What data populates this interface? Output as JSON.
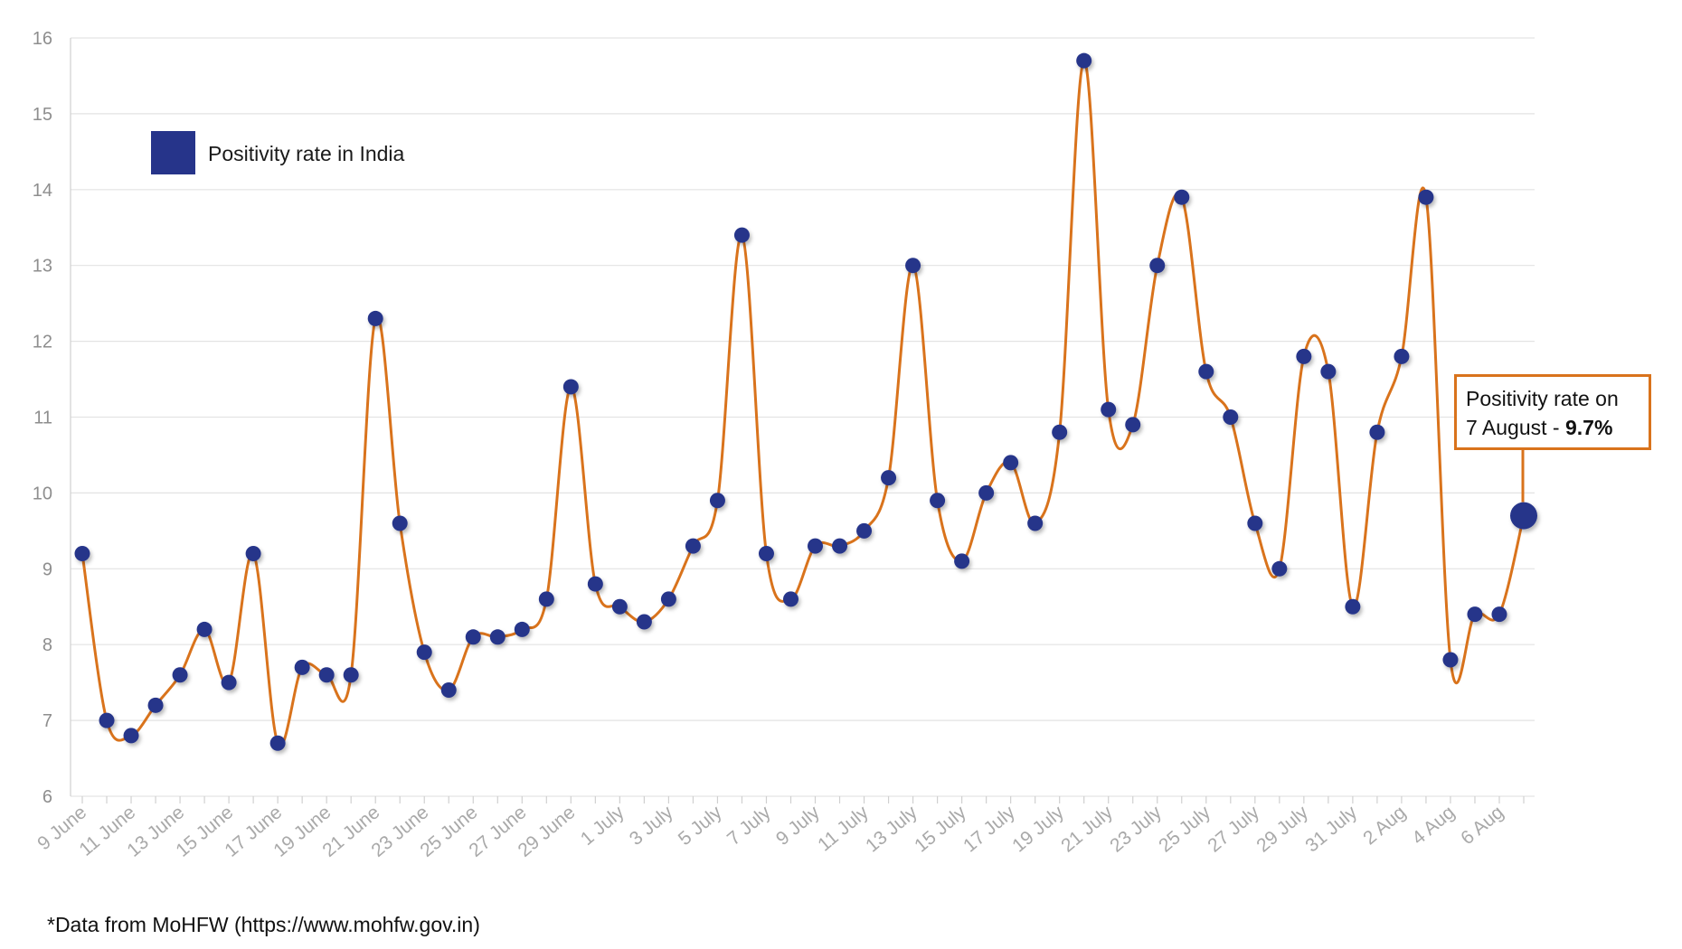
{
  "chart_data": {
    "type": "line",
    "ylim": [
      6,
      16
    ],
    "yticks": [
      6,
      7,
      8,
      9,
      10,
      11,
      12,
      13,
      14,
      15,
      16
    ],
    "grid": true,
    "legend_position": "top-left",
    "colors": {
      "line": "#d9731c",
      "marker": "#26348a",
      "grid": "#e3e3e3",
      "axis": "#d0d0d0"
    },
    "x_tick_labels": [
      "9 June",
      "11 June",
      "13 June",
      "15 June",
      "17 June",
      "19 June",
      "21 June",
      "23 June",
      "25 June",
      "27 June",
      "29 June",
      "1 July",
      "3 July",
      "5 July",
      "7 July",
      "9 July",
      "11 July",
      "13 July",
      "15 July",
      "17 July",
      "19 July",
      "21 July",
      "23 July",
      "25 July",
      "27 July",
      "29 July",
      "31 July",
      "2 Aug",
      "4 Aug",
      "6 Aug"
    ],
    "series": [
      {
        "name": "Positivity rate in India",
        "x": [
          "9 June",
          "10 June",
          "11 June",
          "12 June",
          "13 June",
          "14 June",
          "15 June",
          "16 June",
          "17 June",
          "18 June",
          "19 June",
          "20 June",
          "21 June",
          "22 June",
          "23 June",
          "24 June",
          "25 June",
          "26 June",
          "27 June",
          "28 June",
          "29 June",
          "30 June",
          "1 July",
          "2 July",
          "3 July",
          "4 July",
          "5 July",
          "6 July",
          "7 July",
          "8 July",
          "9 July",
          "10 July",
          "11 July",
          "12 July",
          "13 July",
          "14 July",
          "15 July",
          "16 July",
          "17 July",
          "18 July",
          "19 July",
          "20 July",
          "21 July",
          "22 July",
          "23 July",
          "24 July",
          "25 July",
          "26 July",
          "27 July",
          "28 July",
          "29 July",
          "30 July",
          "31 July",
          "1 Aug",
          "2 Aug",
          "3 Aug",
          "4 Aug",
          "5 Aug",
          "6 Aug",
          "7 Aug"
        ],
        "values": [
          9.2,
          7.0,
          6.8,
          7.2,
          7.6,
          8.2,
          7.5,
          9.2,
          6.7,
          7.7,
          7.6,
          7.6,
          12.3,
          9.6,
          7.9,
          7.4,
          8.1,
          8.1,
          8.2,
          8.6,
          11.4,
          8.8,
          8.5,
          8.3,
          8.6,
          9.3,
          9.9,
          13.4,
          9.2,
          8.6,
          9.3,
          9.3,
          9.5,
          10.2,
          13.0,
          9.9,
          9.1,
          10.0,
          10.4,
          9.6,
          10.8,
          15.7,
          11.1,
          10.9,
          13.0,
          13.9,
          11.6,
          11.0,
          9.6,
          9.0,
          11.8,
          11.6,
          8.5,
          10.8,
          11.8,
          13.9,
          7.8,
          8.4,
          8.4,
          9.7
        ]
      }
    ],
    "legend": {
      "label": "Positivity rate in India"
    },
    "annotation": {
      "line1": "Positivity rate on",
      "line2_prefix": "7 August - ",
      "line2_value": "9.7%"
    }
  },
  "footnote": "*Data from MoHFW (https://www.mohfw.gov.in)"
}
